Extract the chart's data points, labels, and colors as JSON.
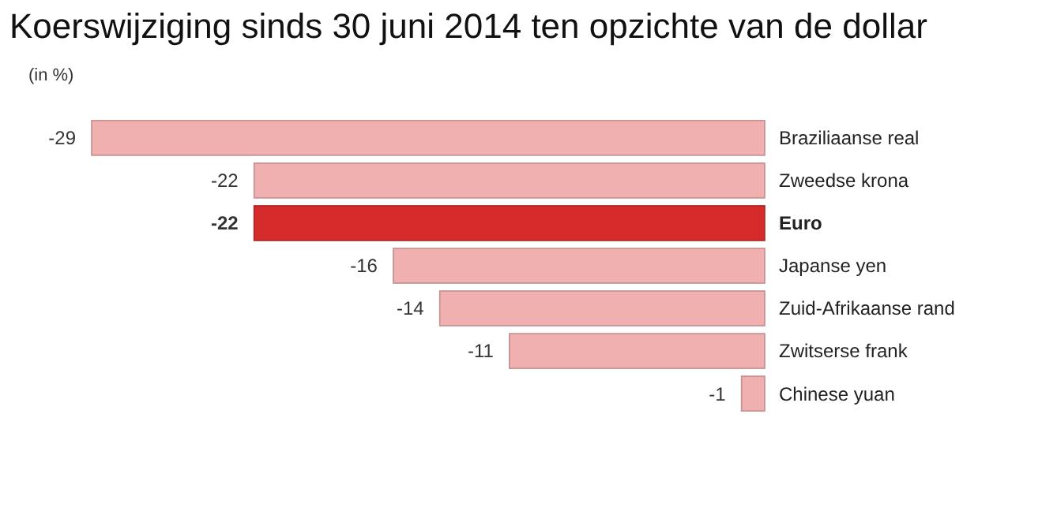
{
  "chart_data": {
    "type": "bar",
    "orientation": "horizontal",
    "title": "Koerswijziging sinds 30 juni 2014 ten opzichte van de dollar",
    "subtitle": "(in %)",
    "categories": [
      "Braziliaanse real",
      "Zweedse krona",
      "Euro",
      "Japanse yen",
      "Zuid-Afrikaanse rand",
      "Zwitserse frank",
      "Chinese yuan"
    ],
    "values": [
      -29,
      -22,
      -22,
      -16,
      -14,
      -11,
      -1
    ],
    "colors": [
      "#f0b0b0",
      "#f0b0b0",
      "#d62b2b",
      "#f0b0b0",
      "#f0b0b0",
      "#f0b0b0",
      "#f0b0b0"
    ],
    "data_labels": true
  }
}
